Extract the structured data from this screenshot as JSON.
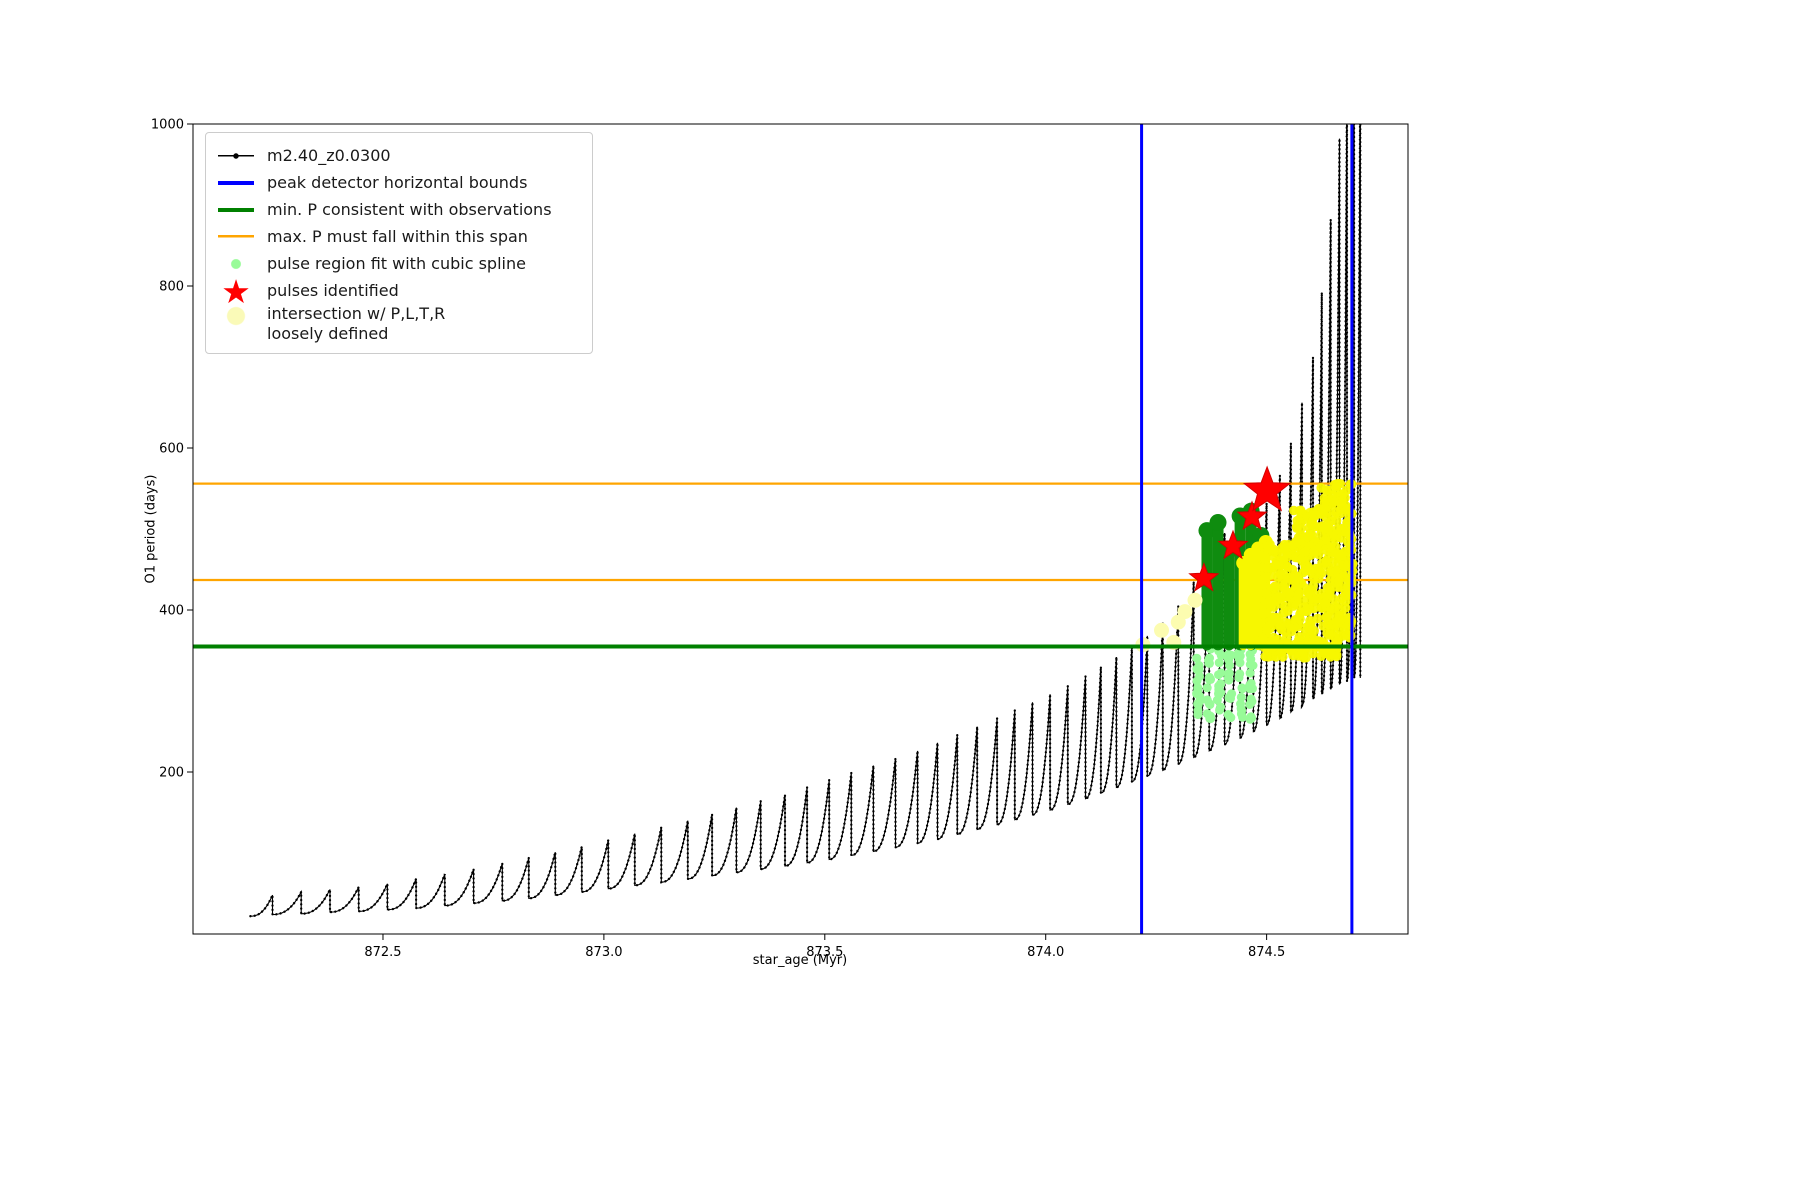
{
  "window": {
    "background": "#ffffff"
  },
  "icons": {
    "star": "★"
  },
  "chart_data": {
    "type": "line+scatter",
    "title": "",
    "xlabel": "star_age (Myr)",
    "ylabel": "O1 period (days)",
    "xlim": [
      872.07,
      874.82
    ],
    "ylim": [
      0,
      1000
    ],
    "grid": false,
    "legend_position": "upper left",
    "xticks": {
      "values": [
        872.5,
        873.0,
        873.5,
        874.0,
        874.5
      ],
      "labels": [
        "872.5",
        "873.0",
        "873.5",
        "874.0",
        "874.5"
      ]
    },
    "yticks": {
      "values": [
        200,
        400,
        600,
        800,
        1000
      ],
      "labels": [
        "200",
        "400",
        "600",
        "800",
        "1000"
      ]
    },
    "legend": {
      "items": [
        {
          "label": "m2.40_z0.0300",
          "marker": "line-black-dot"
        },
        {
          "label": "peak detector horizontal bounds",
          "marker": "line-blue"
        },
        {
          "label": "min. P consistent with observations",
          "marker": "line-green"
        },
        {
          "label": "max. P must fall within this span",
          "marker": "line-orange"
        },
        {
          "label": "pulse region fit with cubic spline",
          "marker": "dot-lightgreen"
        },
        {
          "label": "pulses identified",
          "marker": "star-red"
        },
        {
          "label": "intersection w/ P,L,T,R\nloosely defined",
          "marker": "dot-lightyellow"
        }
      ]
    },
    "series": {
      "track": {
        "name": "m2.40_z0.0300",
        "color": "#000000",
        "teeth_format": [
          "x_peak",
          "cycle_min_period",
          "peak_period"
        ],
        "teeth": [
          [
            872.25,
            22,
            48
          ],
          [
            872.315,
            24,
            52
          ],
          [
            872.38,
            25,
            55
          ],
          [
            872.445,
            27,
            58
          ],
          [
            872.51,
            28,
            62
          ],
          [
            872.575,
            30,
            68
          ],
          [
            872.64,
            32,
            74
          ],
          [
            872.705,
            35,
            80
          ],
          [
            872.77,
            38,
            87
          ],
          [
            872.83,
            41,
            94
          ],
          [
            872.89,
            44,
            101
          ],
          [
            872.95,
            48,
            108
          ],
          [
            873.01,
            52,
            116
          ],
          [
            873.07,
            56,
            124
          ],
          [
            873.13,
            60,
            132
          ],
          [
            873.19,
            64,
            140
          ],
          [
            873.245,
            68,
            148
          ],
          [
            873.3,
            72,
            156
          ],
          [
            873.355,
            76,
            164
          ],
          [
            873.41,
            80,
            172
          ],
          [
            873.46,
            84,
            181
          ],
          [
            873.51,
            88,
            190
          ],
          [
            873.56,
            92,
            199
          ],
          [
            873.61,
            97,
            208
          ],
          [
            873.66,
            102,
            217
          ],
          [
            873.71,
            107,
            226
          ],
          [
            873.755,
            112,
            236
          ],
          [
            873.8,
            117,
            246
          ],
          [
            873.845,
            123,
            256
          ],
          [
            873.89,
            129,
            266
          ],
          [
            873.93,
            135,
            276
          ],
          [
            873.97,
            141,
            286
          ],
          [
            874.01,
            147,
            296
          ],
          [
            874.05,
            153,
            306
          ],
          [
            874.09,
            160,
            318
          ],
          [
            874.125,
            167,
            330
          ],
          [
            874.16,
            174,
            342
          ],
          [
            874.195,
            181,
            354
          ],
          [
            874.23,
            188,
            368
          ],
          [
            874.265,
            195,
            384
          ],
          [
            874.3,
            202,
            405
          ],
          [
            874.335,
            210,
            435
          ],
          [
            874.37,
            218,
            465
          ],
          [
            874.405,
            226,
            495
          ],
          [
            874.44,
            234,
            505
          ],
          [
            874.47,
            242,
            500
          ],
          [
            874.5,
            250,
            532
          ],
          [
            874.53,
            258,
            566
          ],
          [
            874.555,
            266,
            606
          ],
          [
            874.58,
            274,
            656
          ],
          [
            874.605,
            282,
            712
          ],
          [
            874.625,
            290,
            792
          ],
          [
            874.645,
            296,
            882
          ],
          [
            874.665,
            302,
            982
          ],
          [
            874.682,
            308,
            1060
          ],
          [
            874.698,
            312,
            1120
          ],
          [
            874.712,
            316,
            1080
          ]
        ]
      },
      "peak_detector_bounds": {
        "name": "peak detector horizontal bounds",
        "color": "#0000ff",
        "x": [
          874.217,
          874.693
        ],
        "linewidth": 3
      },
      "min_P_line": {
        "name": "min. P consistent with observations",
        "color": "#008000",
        "y": 355,
        "linewidth": 4
      },
      "max_P_span": {
        "name": "max. P must fall within this span",
        "color": "#ffa500",
        "y": [
          437,
          556
        ],
        "linewidth": 2.2
      },
      "spline_fit": {
        "name": "pulse region fit with cubic spline",
        "color": "#98fb98",
        "column_x": [
          874.345,
          874.369,
          874.393,
          874.417,
          874.441,
          874.465
        ],
        "y_range": [
          265,
          352
        ],
        "points_per_column": 16,
        "radius": 4.5
      },
      "pulse_columns": {
        "name": "pulse region dense fit columns",
        "color": "#0f8c0f",
        "bottom": 357,
        "width": 11,
        "items": [
          {
            "x": 874.365,
            "top": 498
          },
          {
            "x": 874.39,
            "top": 508
          },
          {
            "x": 874.415,
            "top": 474
          },
          {
            "x": 874.44,
            "top": 516
          },
          {
            "x": 874.465,
            "top": 522
          },
          {
            "x": 874.487,
            "top": 492
          }
        ]
      },
      "pulses": {
        "name": "pulses identified",
        "color": "#ff0000",
        "points": [
          [
            874.358,
            439
          ],
          [
            874.424,
            479
          ],
          [
            874.467,
            515
          ],
          [
            874.501,
            547
          ]
        ],
        "sizes": [
          15,
          15,
          15,
          24
        ]
      },
      "intersection": {
        "name": "intersection w/ P,L,T,R loosely defined",
        "color_bright": "#f7f700",
        "color_pale": "#fcfcb0",
        "columns": {
          "bottom": 356,
          "width": 9,
          "items": [
            {
              "x": 874.447,
              "top": 458
            },
            {
              "x": 874.464,
              "top": 468
            },
            {
              "x": 874.481,
              "top": 476
            },
            {
              "x": 874.498,
              "top": 484
            }
          ]
        },
        "mass_clusters": [
          {
            "x0": 874.49,
            "x1": 874.56,
            "y0": 356,
            "y1": 482,
            "n": 130
          },
          {
            "x0": 874.56,
            "x1": 874.62,
            "y0": 356,
            "y1": 527,
            "n": 160
          },
          {
            "x0": 874.62,
            "x1": 874.695,
            "y0": 356,
            "y1": 556,
            "n": 210
          },
          {
            "x0": 874.495,
            "x1": 874.66,
            "y0": 341,
            "y1": 357,
            "n": 60
          }
        ],
        "mass_radius": 4.8,
        "pale_points": [
          [
            874.22,
            357
          ],
          [
            874.262,
            375
          ],
          [
            874.29,
            360
          ],
          [
            874.3,
            385
          ],
          [
            874.315,
            398
          ],
          [
            874.338,
            412
          ],
          [
            874.501,
            547
          ]
        ],
        "pale_radius": 7.5
      }
    }
  }
}
